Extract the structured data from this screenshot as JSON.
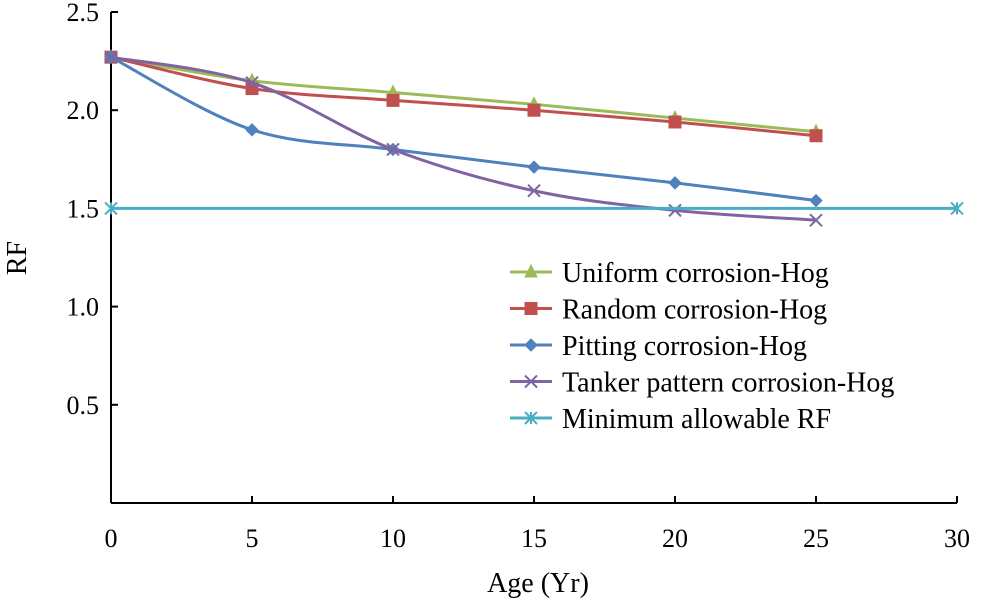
{
  "chart_data": {
    "type": "line",
    "title": "",
    "xlabel": "Age (Yr)",
    "ylabel": "RF",
    "xlim": [
      0,
      30
    ],
    "ylim": [
      0,
      2.5
    ],
    "xticks": [
      0,
      5,
      10,
      15,
      20,
      25,
      30
    ],
    "xtick_labels": [
      "0",
      "5",
      "10",
      "15",
      "20",
      "25",
      "30"
    ],
    "yticks": [
      0.5,
      1.0,
      1.5,
      2.0,
      2.5
    ],
    "ytick_labels": [
      "0.5",
      "1.0",
      "1.5",
      "2.0",
      "2.5"
    ],
    "grid": false,
    "legend_position": "bottom-right",
    "series": [
      {
        "name": "Uniform corrosion-Hog",
        "color": "#9bbb59",
        "marker": "triangle",
        "x": [
          0,
          5,
          10,
          15,
          20,
          25
        ],
        "y": [
          2.27,
          2.15,
          2.09,
          2.03,
          1.96,
          1.89
        ]
      },
      {
        "name": "Random corrosion-Hog",
        "color": "#c0504d",
        "marker": "square",
        "x": [
          0,
          5,
          10,
          15,
          20,
          25
        ],
        "y": [
          2.27,
          2.11,
          2.05,
          2.0,
          1.94,
          1.87
        ]
      },
      {
        "name": "Pitting corrosion-Hog",
        "color": "#4f81bd",
        "marker": "diamond",
        "x": [
          0,
          5,
          10,
          15,
          20,
          25
        ],
        "y": [
          2.27,
          1.9,
          1.8,
          1.71,
          1.63,
          1.54
        ]
      },
      {
        "name": "Tanker pattern corrosion-Hog",
        "color": "#8064a2",
        "marker": "x",
        "x": [
          0,
          5,
          10,
          15,
          20,
          25
        ],
        "y": [
          2.27,
          2.14,
          1.8,
          1.59,
          1.49,
          1.44
        ]
      },
      {
        "name": "Minimum allowable RF",
        "color": "#4bacc6",
        "marker": "asterisk",
        "x": [
          0,
          30
        ],
        "y": [
          1.5,
          1.5
        ]
      }
    ]
  }
}
